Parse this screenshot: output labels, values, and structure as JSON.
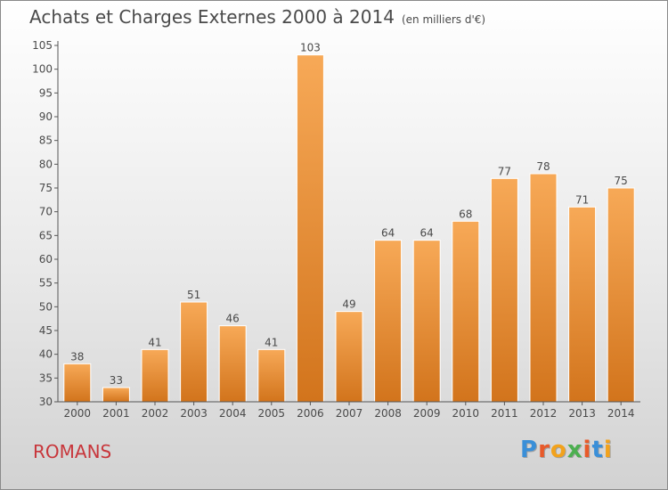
{
  "title": "Achats et Charges Externes 2000 à 2014",
  "subtitle": "(en milliers d'€)",
  "city": "ROMANS",
  "logo": {
    "text": "Proxiti",
    "letter_colors": [
      "#3a8fd8",
      "#e85a2a",
      "#f2a21c",
      "#4caf50",
      "#e85a2a",
      "#3a8fd8",
      "#f2a21c"
    ]
  },
  "colors": {
    "bar_light": "#f7a957",
    "bar_dark": "#d2741c",
    "text": "#4a4a4a",
    "city": "#c8363b"
  },
  "chart_data": {
    "type": "bar",
    "categories": [
      "2000",
      "2001",
      "2002",
      "2003",
      "2004",
      "2005",
      "2006",
      "2007",
      "2008",
      "2009",
      "2010",
      "2011",
      "2012",
      "2013",
      "2014"
    ],
    "values": [
      38,
      33,
      41,
      51,
      46,
      41,
      103,
      49,
      64,
      64,
      68,
      77,
      78,
      71,
      75
    ],
    "ylim": [
      30,
      105
    ],
    "yticks": [
      30,
      35,
      40,
      45,
      50,
      55,
      60,
      65,
      70,
      75,
      80,
      85,
      90,
      95,
      100,
      105
    ],
    "grid": false,
    "data_labels": true
  }
}
